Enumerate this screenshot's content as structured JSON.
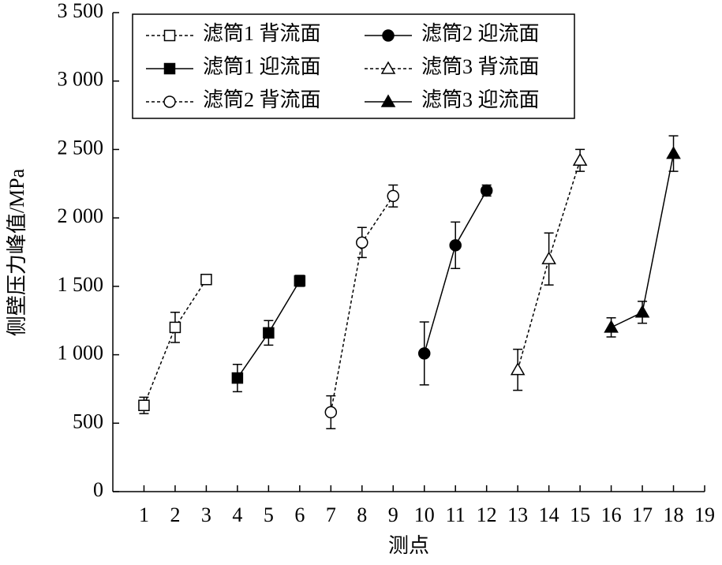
{
  "chart_data": {
    "type": "line",
    "xlabel": "测点",
    "ylabel": "侧壁压力峰值/MPa",
    "xlim": [
      0,
      19
    ],
    "xticks": [
      1,
      2,
      3,
      4,
      5,
      6,
      7,
      8,
      9,
      10,
      11,
      12,
      13,
      14,
      15,
      16,
      17,
      18,
      19
    ],
    "ylim": [
      0,
      3500
    ],
    "yticks": [
      {
        "value": 0,
        "label": "0"
      },
      {
        "value": 500,
        "label": "500"
      },
      {
        "value": 1000,
        "label": "1 000"
      },
      {
        "value": 1500,
        "label": "1 500"
      },
      {
        "value": 2000,
        "label": "2 000"
      },
      {
        "value": 2500,
        "label": "2 500"
      },
      {
        "value": 3000,
        "label": "3 000"
      },
      {
        "value": 3500,
        "label": "3 500"
      }
    ],
    "grid": false,
    "legend": "top-left",
    "series": [
      {
        "name": "滤筒1 背流面",
        "color": "#000000",
        "marker": "square",
        "filled": false,
        "dash": "dashed",
        "x": [
          1,
          2,
          3
        ],
        "values": [
          630,
          1200,
          1550
        ],
        "errors": [
          60,
          110,
          30
        ]
      },
      {
        "name": "滤筒1 迎流面",
        "color": "#000000",
        "marker": "square",
        "filled": true,
        "dash": "solid",
        "x": [
          4,
          5,
          6
        ],
        "values": [
          830,
          1160,
          1540
        ],
        "errors": [
          100,
          90,
          40
        ]
      },
      {
        "name": "滤筒2 背流面",
        "color": "#000000",
        "marker": "circle",
        "filled": false,
        "dash": "dashed",
        "x": [
          7,
          8,
          9
        ],
        "values": [
          580,
          1820,
          2160
        ],
        "errors": [
          120,
          110,
          80
        ]
      },
      {
        "name": "滤筒2 迎流面",
        "color": "#000000",
        "marker": "circle",
        "filled": true,
        "dash": "solid",
        "x": [
          10,
          11,
          12
        ],
        "values": [
          1010,
          1800,
          2200
        ],
        "errors": [
          230,
          170,
          40
        ]
      },
      {
        "name": "滤筒3 背流面",
        "color": "#000000",
        "marker": "triangle",
        "filled": false,
        "dash": "dashed",
        "x": [
          13,
          14,
          15
        ],
        "values": [
          890,
          1700,
          2420
        ],
        "errors": [
          150,
          190,
          80
        ]
      },
      {
        "name": "滤筒3 迎流面",
        "color": "#000000",
        "marker": "triangle",
        "filled": true,
        "dash": "solid",
        "x": [
          16,
          17,
          18
        ],
        "values": [
          1200,
          1310,
          2470
        ],
        "errors": [
          70,
          80,
          130
        ]
      }
    ]
  }
}
